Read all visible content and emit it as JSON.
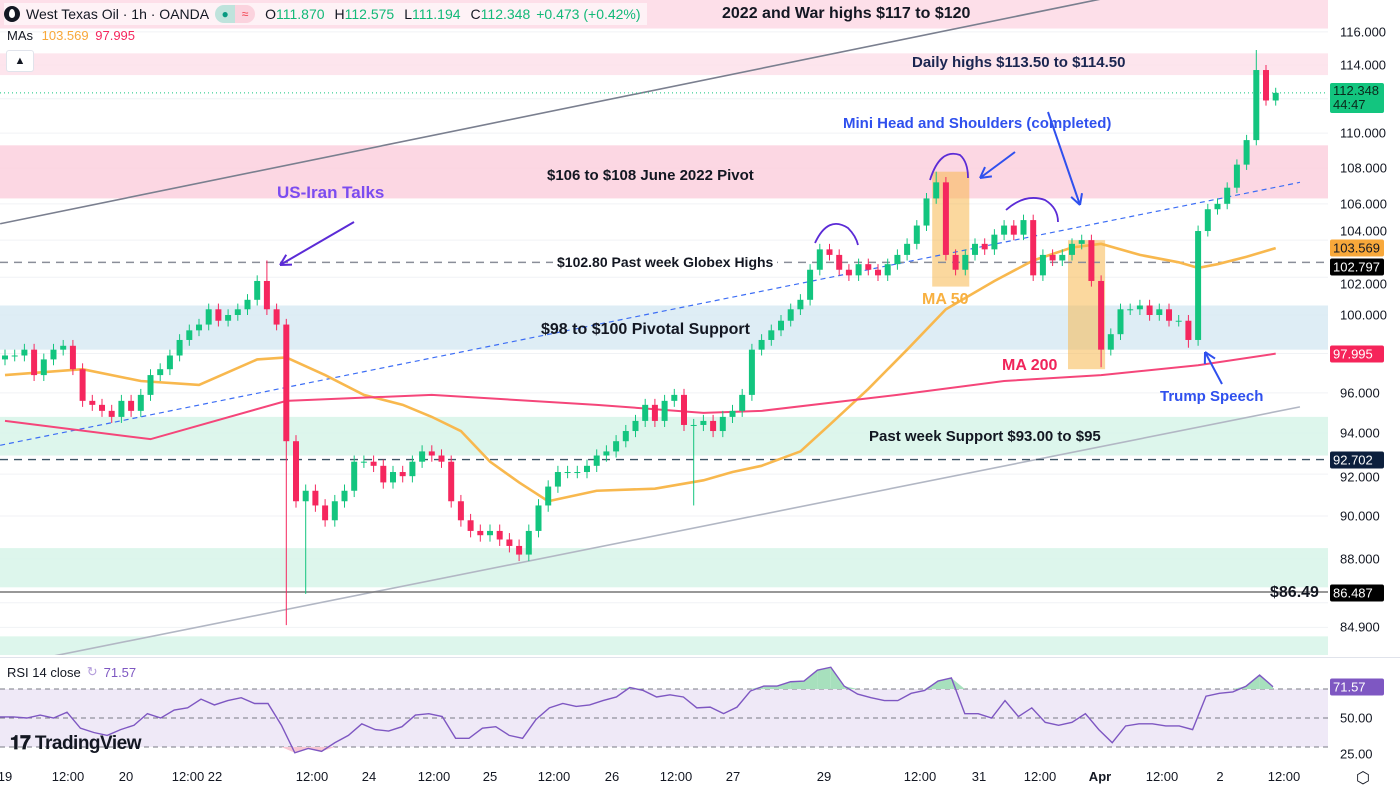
{
  "header": {
    "symbol": "West Texas Oil · 1h · OANDA",
    "open_label": "O",
    "open": "111.870",
    "high_label": "H",
    "high": "112.575",
    "low_label": "L",
    "low": "111.194",
    "close_label": "C",
    "close": "112.348",
    "change": "+0.473 (+0.42%)",
    "mas_label": "MAs",
    "ma50_value": "103.569",
    "ma200_value": "97.995",
    "collapse_icon": "chevron-up-icon"
  },
  "rsi_legend": {
    "label": "RSI 14 close",
    "value": "71.57"
  },
  "branding": "TradingView",
  "colors": {
    "up": "#13c57f",
    "down": "#f5275e",
    "ma50": "#f8b84e",
    "ma200": "#f5467a",
    "rsi": "#7e57c2",
    "trend_blue": "#3d6ef5"
  },
  "annotations": {
    "war_highs": "2022 and War highs $117 to $120",
    "daily_highs": "Daily highs $113.50 to $114.50",
    "head_shoulders": "Mini Head and Shoulders (completed)",
    "june_pivot": "$106 to $108 June 2022 Pivot",
    "us_iran": "US-Iran Talks",
    "globex_highs": "$102.80 Past week Globex Highs",
    "pivotal_support": "$98 to $100 Pivotal Support",
    "ma50": "MA 50",
    "ma200": "MA 200",
    "trump": "Trump Speech",
    "week_support": "Past week Support $93.00 to $95",
    "level_8649": "$86.49"
  },
  "price_axis": {
    "ticks": [
      "116.000",
      "114.000",
      "110.000",
      "108.000",
      "106.000",
      "104.000",
      "102.000",
      "100.000",
      "96.000",
      "94.000",
      "92.000",
      "90.000",
      "88.000",
      "84.900"
    ],
    "badges": {
      "last_price": "112.348",
      "countdown": "44:47",
      "ma50": "103.569",
      "globex": "102.797",
      "ma200": "97.995",
      "support": "92.702",
      "low_level": "86.487"
    }
  },
  "rsi_axis": {
    "ticks": [
      "50.00",
      "25.00"
    ],
    "badge": "71.57"
  },
  "time_axis": [
    "19",
    "12:00",
    "20",
    "12:00",
    "22",
    "12:00",
    "24",
    "12:00",
    "25",
    "12:00",
    "26",
    "12:00",
    "27",
    "29",
    "12:00",
    "31",
    "12:00",
    "Apr",
    "12:00",
    "2",
    "12:00"
  ],
  "chart_data": [
    {
      "type": "candlestick",
      "title": "West Texas Oil · 1h · OANDA",
      "y_scale": "log",
      "ylim": [
        83.5,
        118
      ],
      "grid": true,
      "first_open": 97.7,
      "closes": [
        97.9,
        97.9,
        98.2,
        96.9,
        97.7,
        98.2,
        98.4,
        97.2,
        95.6,
        95.4,
        95.1,
        94.8,
        95.6,
        95.1,
        95.9,
        96.9,
        97.2,
        97.9,
        98.7,
        99.2,
        99.5,
        100.3,
        99.7,
        100.0,
        100.3,
        100.8,
        101.8,
        100.3,
        99.5,
        93.6,
        90.7,
        91.2,
        90.5,
        89.8,
        90.7,
        91.2,
        92.6,
        92.6,
        92.4,
        91.6,
        92.1,
        91.9,
        92.6,
        93.1,
        92.9,
        92.6,
        90.7,
        89.8,
        89.3,
        89.1,
        89.3,
        88.9,
        88.6,
        88.2,
        89.3,
        90.5,
        91.4,
        92.1,
        92.1,
        92.1,
        92.4,
        92.9,
        93.1,
        93.6,
        94.1,
        94.6,
        95.4,
        94.6,
        95.6,
        95.9,
        94.4,
        94.4,
        94.6,
        94.1,
        94.8,
        95.1,
        95.9,
        98.2,
        98.7,
        99.2,
        99.7,
        100.3,
        100.8,
        102.4,
        103.5,
        103.2,
        102.4,
        102.1,
        102.7,
        102.4,
        102.1,
        102.7,
        103.2,
        103.8,
        104.8,
        106.3,
        107.2,
        103.2,
        102.4,
        103.2,
        103.8,
        103.5,
        104.3,
        104.8,
        104.3,
        105.1,
        102.1,
        103.2,
        102.9,
        103.2,
        103.8,
        104.0,
        101.8,
        98.2,
        99.0,
        100.3,
        100.3,
        100.5,
        100.0,
        100.3,
        99.7,
        99.7,
        98.7,
        104.5,
        105.7,
        106.0,
        106.9,
        108.2,
        109.6,
        113.7,
        111.9,
        112.348
      ],
      "wick_extremes": [
        {
          "bar": 27,
          "high": 102.9
        },
        {
          "bar": 29,
          "low": 85.0
        },
        {
          "bar": 31,
          "low": 86.4
        },
        {
          "bar": 71,
          "low": 90.5
        },
        {
          "bar": 96,
          "high": 107.8
        },
        {
          "bar": 113,
          "low": 97.3
        },
        {
          "bar": 122,
          "low": 98.3
        },
        {
          "bar": 129,
          "high": 114.9
        }
      ],
      "moving_averages": [
        {
          "name": "MA 50",
          "last": 103.569,
          "points": [
            [
              0,
              96.9
            ],
            [
              8,
              97.2
            ],
            [
              14,
              96.6
            ],
            [
              20,
              96.4
            ],
            [
              26,
              97.7
            ],
            [
              29,
              97.8
            ],
            [
              33,
              96.9
            ],
            [
              37,
              95.9
            ],
            [
              41,
              95.4
            ],
            [
              44,
              94.8
            ],
            [
              47,
              94.1
            ],
            [
              50,
              92.6
            ],
            [
              53,
              91.6
            ],
            [
              56,
              90.7
            ],
            [
              57,
              90.8
            ],
            [
              61,
              91.2
            ],
            [
              67,
              91.3
            ],
            [
              72,
              91.7
            ],
            [
              75,
              92.1
            ],
            [
              78,
              92.4
            ],
            [
              82,
              93.1
            ],
            [
              85,
              94.4
            ],
            [
              89,
              96.2
            ],
            [
              93,
              98.2
            ],
            [
              97,
              100.3
            ],
            [
              102,
              101.8
            ],
            [
              106,
              102.9
            ],
            [
              110,
              103.6
            ],
            [
              113,
              103.8
            ],
            [
              117,
              103.2
            ],
            [
              121,
              102.8
            ],
            [
              123,
              102.5
            ],
            [
              125,
              102.7
            ],
            [
              128,
              103.1
            ],
            [
              131,
              103.569
            ]
          ]
        },
        {
          "name": "MA 200",
          "last": 97.995,
          "points": [
            [
              0,
              94.6
            ],
            [
              15,
              93.7
            ],
            [
              29,
              95.6
            ],
            [
              44,
              95.9
            ],
            [
              61,
              95.4
            ],
            [
              72,
              95.0
            ],
            [
              78,
              95.1
            ],
            [
              92,
              95.9
            ],
            [
              103,
              96.6
            ],
            [
              113,
              96.9
            ],
            [
              123,
              97.4
            ],
            [
              131,
              97.995
            ]
          ]
        }
      ],
      "horizontal_levels": [
        {
          "price": 102.797,
          "style": "dashed",
          "label": "$102.80 Past week Globex Highs"
        },
        {
          "price": 92.702,
          "style": "dashed",
          "label": "Past week Support $93.00 to $95"
        },
        {
          "price": 86.487,
          "style": "solid",
          "label": "$86.49"
        },
        {
          "price": 112.348,
          "style": "dotted",
          "label": "last price"
        }
      ],
      "zones": [
        {
          "from": 116.2,
          "to": 118.0,
          "color": "#fdd9e5",
          "label": "2022 and War highs $117 to $120"
        },
        {
          "from": 113.4,
          "to": 114.7,
          "color": "#fde0ea",
          "label": "Daily highs $113.50 to $114.50"
        },
        {
          "from": 106.3,
          "to": 109.3,
          "color": "#fbd0de",
          "label": "$106 to $108 June 2022 Pivot"
        },
        {
          "from": 98.2,
          "to": 100.5,
          "color": "#d8eaf3",
          "label": "$98 to $100 Pivotal Support"
        },
        {
          "from": 92.9,
          "to": 94.8,
          "color": "#d7f5e9",
          "label": "Past week Support $93.00 to $95"
        },
        {
          "from": 86.7,
          "to": 88.5,
          "color": "#d7f5e9"
        },
        {
          "from": 83.5,
          "to": 84.5,
          "color": "#d7f5e9"
        }
      ],
      "trendlines": [
        {
          "from": [
            -0.5,
            104.9
          ],
          "to": [
            112.9,
            118.0
          ],
          "color": "#7a7f8f",
          "style": "solid"
        },
        {
          "from": [
            4.6,
            83.6
          ],
          "to": [
            133.5,
            95.3
          ],
          "color": "#b2b7c4",
          "style": "solid"
        },
        {
          "from": [
            -0.5,
            93.4
          ],
          "to": [
            133.5,
            107.2
          ],
          "color": "#3d6ef5",
          "style": "dashed"
        }
      ],
      "highlight_boxes": [
        {
          "bars": [
            96,
            99
          ],
          "price": [
            101.5,
            107.8
          ]
        },
        {
          "bars": [
            110,
            113
          ],
          "price": [
            97.2,
            104.0
          ]
        }
      ]
    },
    {
      "type": "line",
      "title": "RSI 14 close",
      "ylim": [
        20,
        90
      ],
      "levels": [
        70,
        50,
        30
      ],
      "last": 71.57,
      "values": [
        50.7,
        50.7,
        50,
        52,
        50,
        54,
        43,
        40,
        38,
        42,
        45,
        53,
        50,
        55.5,
        57,
        63,
        59,
        62,
        64,
        60,
        60,
        45,
        26,
        29,
        27,
        33,
        38,
        46,
        42,
        41,
        44,
        52,
        53,
        51,
        36,
        36,
        43,
        44,
        38,
        36,
        49,
        57,
        60,
        58,
        59,
        62,
        64.5,
        71,
        69,
        64.5,
        66,
        64.5,
        57,
        57.5,
        53,
        57.5,
        68.6,
        72,
        72,
        75,
        75.5,
        83,
        85,
        72,
        66.5,
        64,
        62,
        62,
        67,
        69,
        75.5,
        77.6,
        53,
        53,
        50,
        62,
        51,
        57,
        47,
        45,
        47,
        53,
        42,
        33,
        44.5,
        46,
        46,
        44.5,
        44.5,
        42,
        65,
        67,
        68,
        72,
        79.6,
        71.57
      ]
    }
  ]
}
